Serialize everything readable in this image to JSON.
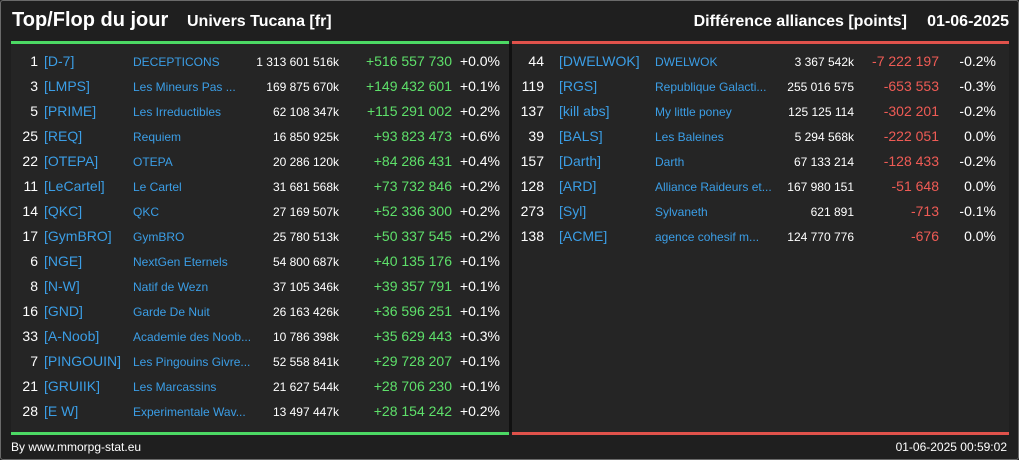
{
  "header": {
    "title": "Top/Flop du jour",
    "universe": "Univers Tucana [fr]",
    "metric": "Différence alliances [points]",
    "date": "01-06-2025"
  },
  "colors": {
    "top_accent": "#4cd964",
    "flop_accent": "#e0524b",
    "tag_color": "#3b9ee6",
    "gain_color": "#5ee06a",
    "loss_color": "#ef5b55"
  },
  "top": [
    {
      "rank": "1",
      "tag": "[D-7]",
      "name": "DECEPTICONS",
      "points": "1 313 601 516k",
      "delta": "+516 557 730",
      "pct": "+0.0%"
    },
    {
      "rank": "3",
      "tag": "[LMPS]",
      "name": "Les Mineurs Pas ...",
      "points": "169 875 670k",
      "delta": "+149 432 601",
      "pct": "+0.1%"
    },
    {
      "rank": "5",
      "tag": "[PRIME]",
      "name": "Les Irreductibles",
      "points": "62 108 347k",
      "delta": "+115 291 002",
      "pct": "+0.2%"
    },
    {
      "rank": "25",
      "tag": "[REQ]",
      "name": "Requiem",
      "points": "16 850 925k",
      "delta": "+93 823 473",
      "pct": "+0.6%"
    },
    {
      "rank": "22",
      "tag": "[OTEPA]",
      "name": "OTEPA",
      "points": "20 286 120k",
      "delta": "+84 286 431",
      "pct": "+0.4%"
    },
    {
      "rank": "11",
      "tag": "[LeCartel]",
      "name": "Le Cartel",
      "points": "31 681 568k",
      "delta": "+73 732 846",
      "pct": "+0.2%"
    },
    {
      "rank": "14",
      "tag": "[QKC]",
      "name": "QKC",
      "points": "27 169 507k",
      "delta": "+52 336 300",
      "pct": "+0.2%"
    },
    {
      "rank": "17",
      "tag": "[GymBRO]",
      "name": "GymBRO",
      "points": "25 780 513k",
      "delta": "+50 337 545",
      "pct": "+0.2%"
    },
    {
      "rank": "6",
      "tag": "[NGE]",
      "name": "NextGen Eternels",
      "points": "54 800 687k",
      "delta": "+40 135 176",
      "pct": "+0.1%"
    },
    {
      "rank": "8",
      "tag": "[N-W]",
      "name": "Natif de Wezn",
      "points": "37 105 346k",
      "delta": "+39 357 791",
      "pct": "+0.1%"
    },
    {
      "rank": "16",
      "tag": "[GND]",
      "name": "Garde De Nuit",
      "points": "26 163 426k",
      "delta": "+36 596 251",
      "pct": "+0.1%"
    },
    {
      "rank": "33",
      "tag": "[A-Noob]",
      "name": "Academie des Noob...",
      "points": "10 786 398k",
      "delta": "+35 629 443",
      "pct": "+0.3%"
    },
    {
      "rank": "7",
      "tag": "[PINGOUIN]",
      "name": "Les Pingouins Givre...",
      "points": "52 558 841k",
      "delta": "+29 728 207",
      "pct": "+0.1%"
    },
    {
      "rank": "21",
      "tag": "[GRUIIK]",
      "name": "Les Marcassins",
      "points": "21 627 544k",
      "delta": "+28 706 230",
      "pct": "+0.1%"
    },
    {
      "rank": "28",
      "tag": "[E W]",
      "name": "Experimentale Wav...",
      "points": "13 497 447k",
      "delta": "+28 154 242",
      "pct": "+0.2%"
    }
  ],
  "flop": [
    {
      "rank": "44",
      "tag": "[DWELWOK]",
      "name": "DWELWOK",
      "points": "3 367 542k",
      "delta": "-7 222 197",
      "pct": "-0.2%"
    },
    {
      "rank": "119",
      "tag": "[RGS]",
      "name": "Republique Galacti...",
      "points": "255 016 575",
      "delta": "-653 553",
      "pct": "-0.3%"
    },
    {
      "rank": "137",
      "tag": "[kill abs]",
      "name": "My little poney",
      "points": "125 125 114",
      "delta": "-302 201",
      "pct": "-0.2%"
    },
    {
      "rank": "39",
      "tag": "[BALS]",
      "name": "Les Baleines",
      "points": "5 294 568k",
      "delta": "-222 051",
      "pct": "0.0%"
    },
    {
      "rank": "157",
      "tag": "[Darth]",
      "name": "Darth",
      "points": "67 133 214",
      "delta": "-128 433",
      "pct": "-0.2%"
    },
    {
      "rank": "128",
      "tag": "[ARD]",
      "name": "Alliance Raideurs et...",
      "points": "167 980 151",
      "delta": "-51 648",
      "pct": "0.0%"
    },
    {
      "rank": "273",
      "tag": "[Syl]",
      "name": "Sylvaneth",
      "points": "621 891",
      "delta": "-713",
      "pct": "-0.1%"
    },
    {
      "rank": "138",
      "tag": "[ACME]",
      "name": "agence cohesif m...",
      "points": "124 770 776",
      "delta": "-676",
      "pct": "0.0%"
    }
  ],
  "footer": {
    "credit": "By www.mmorpg-stat.eu",
    "timestamp": "01-06-2025 00:59:02"
  }
}
